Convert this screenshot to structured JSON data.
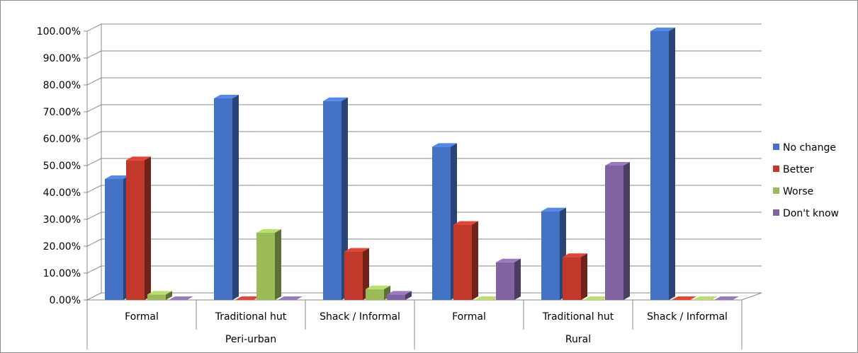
{
  "chart_data": {
    "type": "bar",
    "title": "",
    "xlabel": "",
    "ylabel": "",
    "ylim": [
      0,
      100
    ],
    "yticks": [
      "0.00%",
      "10.00%",
      "20.00%",
      "30.00%",
      "40.00%",
      "50.00%",
      "60.00%",
      "70.00%",
      "80.00%",
      "90.00%",
      "100.00%"
    ],
    "groups": [
      {
        "name": "Peri-urban",
        "categories": [
          "Formal",
          "Traditional hut",
          "Shack / Informal"
        ]
      },
      {
        "name": "Rural",
        "categories": [
          "Formal",
          "Traditional hut",
          "Shack / Informal"
        ]
      }
    ],
    "categories": [
      "Formal",
      "Traditional hut",
      "Shack / Informal",
      "Formal",
      "Traditional hut",
      "Shack / Informal"
    ],
    "series": [
      {
        "name": "No change",
        "color": "#4472c4",
        "values": [
          45,
          75,
          74,
          57,
          33,
          100
        ]
      },
      {
        "name": "Better",
        "color": "#c0392b",
        "values": [
          52,
          0,
          18,
          28,
          16,
          0
        ]
      },
      {
        "name": "Worse",
        "color": "#9bbb59",
        "values": [
          2,
          25,
          4,
          0,
          0,
          0
        ]
      },
      {
        "name": "Don't know",
        "color": "#8064a2",
        "values": [
          0,
          0,
          2,
          14,
          50,
          0
        ]
      }
    ],
    "grid": true,
    "legend": "right"
  }
}
